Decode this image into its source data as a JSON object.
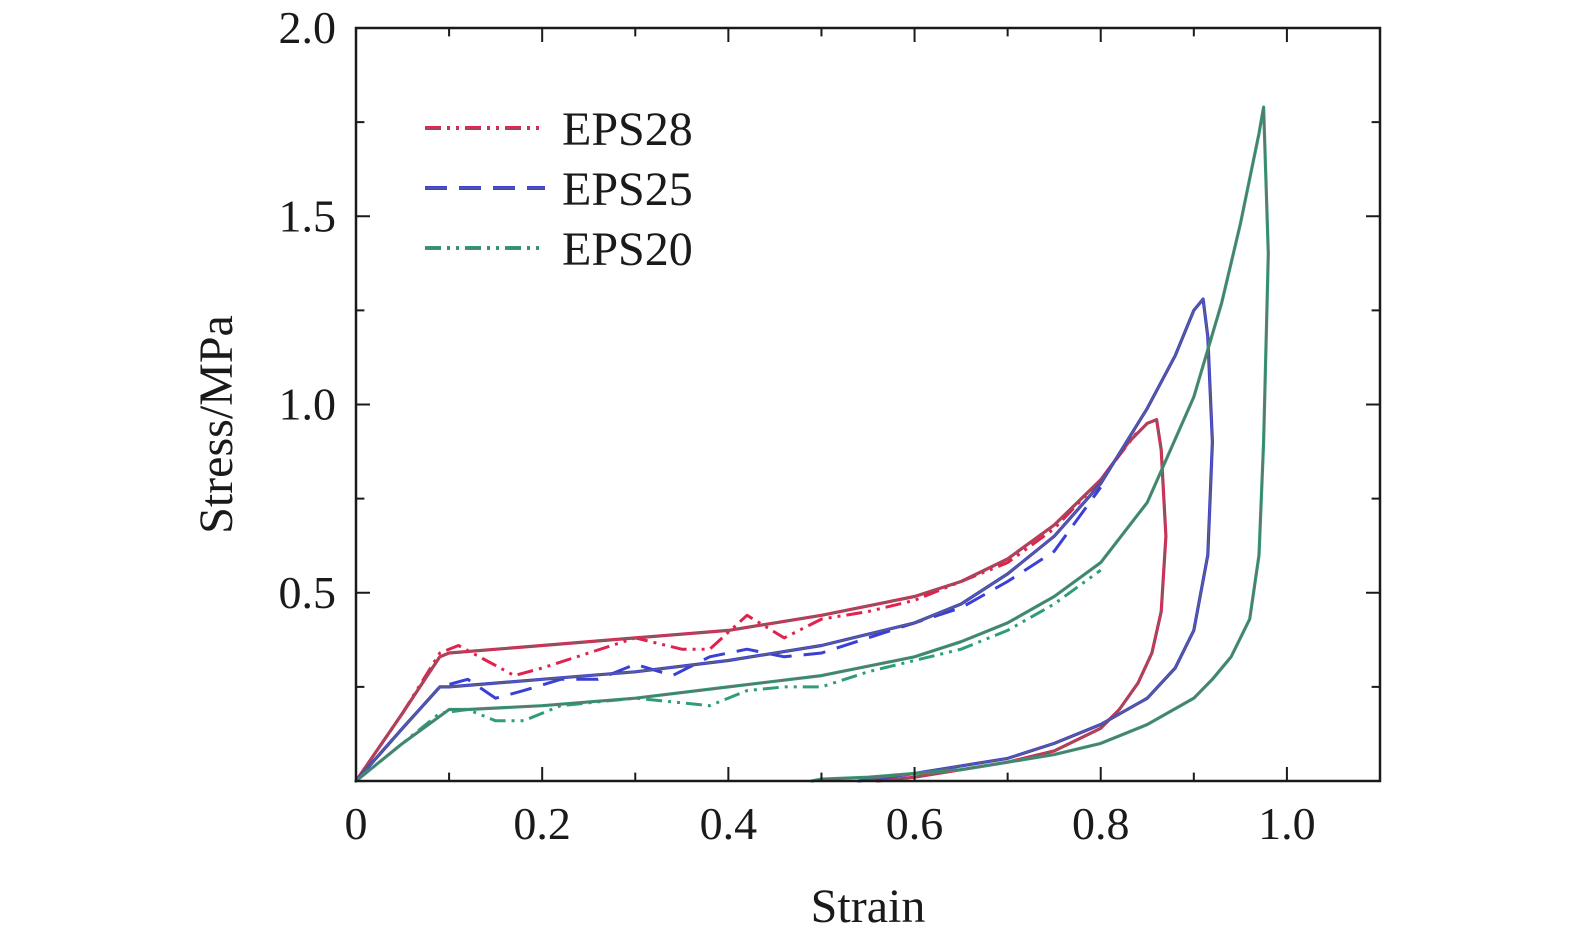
{
  "chart_data": {
    "type": "line",
    "title": "",
    "xlabel": "Strain",
    "ylabel": "Stress/MPa",
    "xlim": [
      0,
      1.1
    ],
    "ylim": [
      0,
      2.0
    ],
    "x_ticks": [
      0,
      0.2,
      0.4,
      0.6,
      0.8,
      1.0
    ],
    "x_tick_labels": [
      "0",
      "0.2",
      "0.4",
      "0.6",
      "0.8",
      "1.0"
    ],
    "y_ticks": [
      0.5,
      1.0,
      1.5,
      2.0
    ],
    "y_tick_labels": [
      "0.5",
      "1.0",
      "1.5",
      "2.0"
    ],
    "grid": false,
    "legend_position": "top-left",
    "series": [
      {
        "name": "EPS28",
        "style": "dash-dot-dot",
        "color": "#e0234e",
        "loading_experimental": {
          "x": [
            0,
            0.05,
            0.09,
            0.11,
            0.14,
            0.17,
            0.2,
            0.25,
            0.3,
            0.35,
            0.38,
            0.42,
            0.46,
            0.5,
            0.55,
            0.6,
            0.65,
            0.7,
            0.75,
            0.8,
            0.84
          ],
          "y": [
            0,
            0.18,
            0.34,
            0.36,
            0.32,
            0.28,
            0.3,
            0.34,
            0.38,
            0.35,
            0.35,
            0.44,
            0.38,
            0.43,
            0.45,
            0.48,
            0.53,
            0.58,
            0.67,
            0.8,
            0.93
          ]
        },
        "model": {
          "x": [
            0,
            0.05,
            0.09,
            0.1,
            0.2,
            0.3,
            0.4,
            0.5,
            0.6,
            0.65,
            0.7,
            0.75,
            0.8,
            0.83,
            0.85,
            0.86,
            0.865,
            0.87,
            0.865,
            0.855,
            0.84,
            0.82,
            0.8,
            0.75,
            0.7,
            0.65,
            0.6,
            0.56
          ],
          "y": [
            0,
            0.18,
            0.33,
            0.34,
            0.36,
            0.38,
            0.4,
            0.44,
            0.49,
            0.53,
            0.59,
            0.68,
            0.8,
            0.9,
            0.95,
            0.96,
            0.88,
            0.65,
            0.45,
            0.34,
            0.26,
            0.19,
            0.14,
            0.08,
            0.05,
            0.03,
            0.01,
            0
          ]
        }
      },
      {
        "name": "EPS25",
        "style": "dashed",
        "color": "#3a3fd6",
        "loading_experimental": {
          "x": [
            0,
            0.05,
            0.09,
            0.12,
            0.15,
            0.18,
            0.22,
            0.26,
            0.3,
            0.34,
            0.38,
            0.42,
            0.46,
            0.5,
            0.55,
            0.6,
            0.65,
            0.7,
            0.75,
            0.8
          ],
          "y": [
            0,
            0.14,
            0.25,
            0.27,
            0.22,
            0.24,
            0.27,
            0.27,
            0.31,
            0.28,
            0.33,
            0.35,
            0.33,
            0.34,
            0.38,
            0.42,
            0.46,
            0.53,
            0.61,
            0.78
          ]
        },
        "model": {
          "x": [
            0,
            0.05,
            0.09,
            0.1,
            0.2,
            0.3,
            0.4,
            0.5,
            0.6,
            0.65,
            0.7,
            0.75,
            0.8,
            0.85,
            0.88,
            0.9,
            0.91,
            0.915,
            0.92,
            0.915,
            0.9,
            0.88,
            0.85,
            0.8,
            0.75,
            0.7,
            0.65,
            0.6,
            0.54
          ],
          "y": [
            0,
            0.14,
            0.25,
            0.25,
            0.27,
            0.29,
            0.32,
            0.36,
            0.42,
            0.47,
            0.55,
            0.65,
            0.79,
            0.99,
            1.13,
            1.25,
            1.28,
            1.18,
            0.9,
            0.6,
            0.4,
            0.3,
            0.22,
            0.15,
            0.1,
            0.06,
            0.04,
            0.02,
            0
          ]
        }
      },
      {
        "name": "EPS20",
        "style": "dash-dot-dot",
        "color": "#2e9e77",
        "loading_experimental": {
          "x": [
            0,
            0.05,
            0.09,
            0.12,
            0.15,
            0.18,
            0.22,
            0.26,
            0.3,
            0.34,
            0.38,
            0.42,
            0.46,
            0.5,
            0.55,
            0.6,
            0.65,
            0.7,
            0.75,
            0.8
          ],
          "y": [
            0,
            0.1,
            0.18,
            0.19,
            0.16,
            0.16,
            0.2,
            0.21,
            0.22,
            0.21,
            0.2,
            0.24,
            0.25,
            0.25,
            0.29,
            0.32,
            0.35,
            0.4,
            0.47,
            0.56
          ]
        },
        "model": {
          "x": [
            0,
            0.05,
            0.1,
            0.12,
            0.2,
            0.3,
            0.4,
            0.5,
            0.6,
            0.65,
            0.7,
            0.75,
            0.8,
            0.85,
            0.9,
            0.93,
            0.95,
            0.97,
            0.975,
            0.98,
            0.975,
            0.97,
            0.96,
            0.94,
            0.92,
            0.9,
            0.85,
            0.8,
            0.75,
            0.7,
            0.65,
            0.6,
            0.55,
            0.5,
            0.49
          ],
          "y": [
            0,
            0.1,
            0.19,
            0.19,
            0.2,
            0.22,
            0.25,
            0.28,
            0.33,
            0.37,
            0.42,
            0.49,
            0.58,
            0.74,
            1.02,
            1.27,
            1.48,
            1.72,
            1.79,
            1.4,
            0.9,
            0.6,
            0.43,
            0.33,
            0.27,
            0.22,
            0.15,
            0.1,
            0.07,
            0.05,
            0.03,
            0.02,
            0.01,
            0.005,
            0
          ]
        }
      }
    ]
  }
}
